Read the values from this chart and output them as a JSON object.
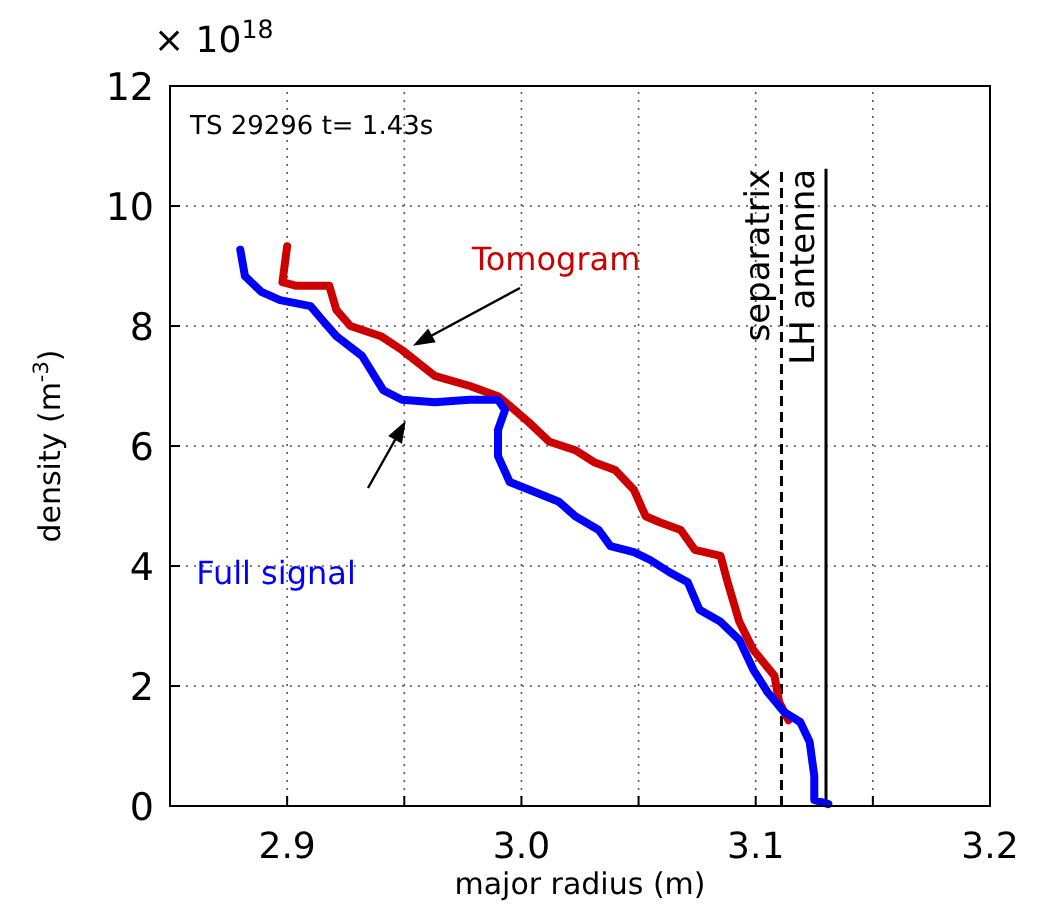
{
  "chart_data": {
    "type": "line",
    "xlabel": "major radius (m)",
    "ylabel": "density (m$^{-3}$)",
    "xlim": [
      2.85,
      3.2
    ],
    "ylim": [
      0,
      12
    ],
    "xticks": [
      2.9,
      {
        "value": 2.95,
        "label": null
      },
      {
        "value": 3,
        "label": "3.0"
      },
      {
        "value": 3.05,
        "label": null
      },
      3.1,
      {
        "value": 3.15,
        "label": null
      },
      3.2
    ],
    "yticks": [
      0,
      2,
      4,
      6,
      8,
      10,
      12
    ],
    "grid": true,
    "line_style": "solid",
    "marker": "none",
    "annotations": [
      "× 10$^{18}$",
      "TS 29296  t= 1.43s"
    ],
    "ref_lines": [
      {
        "axis": "x",
        "value": 3.111,
        "label": "separatrix",
        "color": "#000000",
        "line_style": "dashed"
      },
      {
        "axis": "x",
        "value": 3.13,
        "label": "LH antenna",
        "color": "#000000",
        "line_style": "solid"
      }
    ],
    "series": [
      {
        "name": "Tomogram",
        "color": "#cc0000",
        "x": [
          2.9,
          2.898,
          2.904,
          2.918,
          2.921,
          2.927,
          2.94,
          2.949,
          2.963,
          2.978,
          2.99,
          2.995,
          3.003,
          3.012,
          3.023,
          3.031,
          3.04,
          3.048,
          3.053,
          3.059,
          3.068,
          3.074,
          3.085,
          3.088,
          3.093,
          3.099,
          3.108,
          3.11,
          3.114
        ],
        "values": [
          9.33,
          8.73,
          8.67,
          8.67,
          8.27,
          8,
          7.83,
          7.6,
          7.17,
          7,
          6.83,
          6.67,
          6.4,
          6.07,
          5.93,
          5.73,
          5.6,
          5.27,
          4.83,
          4.73,
          4.6,
          4.27,
          4.17,
          3.73,
          3.07,
          2.6,
          2.17,
          1.73,
          1.43
        ]
      },
      {
        "name": "Full signal",
        "color": "#0000ff",
        "x": [
          2.88,
          2.882,
          2.889,
          2.897,
          2.91,
          2.915,
          2.921,
          2.932,
          2.941,
          2.949,
          2.963,
          2.978,
          2.99,
          2.993,
          2.99,
          2.99,
          2.995,
          3.006,
          3.016,
          3.023,
          3.033,
          3.038,
          3.048,
          3.055,
          3.063,
          3.071,
          3.076,
          3.085,
          3.093,
          3.099,
          3.105,
          3.112,
          3.119,
          3.123,
          3.125,
          3.125,
          3.131
        ],
        "values": [
          9.27,
          8.83,
          8.57,
          8.43,
          8.33,
          8.1,
          7.83,
          7.5,
          6.93,
          6.77,
          6.73,
          6.77,
          6.77,
          6.6,
          6.27,
          5.83,
          5.4,
          5.23,
          5.07,
          4.83,
          4.6,
          4.33,
          4.23,
          4.1,
          3.9,
          3.73,
          3.27,
          3.07,
          2.77,
          2.27,
          1.9,
          1.57,
          1.4,
          1.07,
          0.5,
          0.1,
          0.03
        ]
      }
    ]
  }
}
